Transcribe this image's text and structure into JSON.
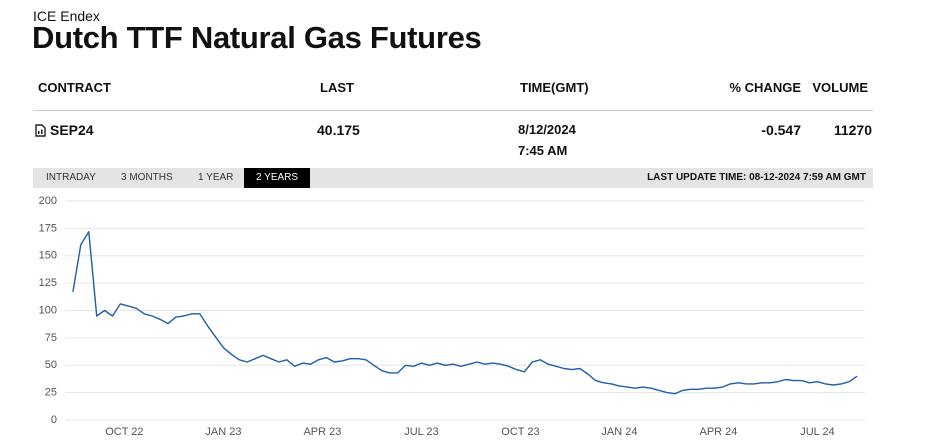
{
  "header": {
    "exchange": "ICE Endex",
    "title": "Dutch TTF Natural Gas Futures"
  },
  "table": {
    "columns": [
      "CONTRACT",
      "LAST",
      "TIME(GMT)",
      "% CHANGE",
      "VOLUME"
    ],
    "row": {
      "contract": "SEP24",
      "last": 40.175,
      "date": "8/12/2024",
      "time": "7:45 AM",
      "change": -0.547,
      "volume": 11270
    }
  },
  "tabs": {
    "items": [
      "INTRADAY",
      "3 MONTHS",
      "1 YEAR",
      "2 YEARS"
    ],
    "active": 3
  },
  "last_update": "LAST UPDATE TIME: 08-12-2024 7:59 AM GMT",
  "chart_data": {
    "type": "line",
    "color": "#1f5fa8",
    "grid": true,
    "x": [
      2022.62,
      2022.64,
      2022.66,
      2022.68,
      2022.7,
      2022.72,
      2022.74,
      2022.76,
      2022.78,
      2022.8,
      2022.82,
      2022.84,
      2022.86,
      2022.88,
      2022.9,
      2022.92,
      2022.94,
      2022.96,
      2022.98,
      2023.0,
      2023.02,
      2023.04,
      2023.06,
      2023.08,
      2023.1,
      2023.12,
      2023.14,
      2023.16,
      2023.18,
      2023.2,
      2023.22,
      2023.24,
      2023.26,
      2023.28,
      2023.3,
      2023.32,
      2023.34,
      2023.36,
      2023.38,
      2023.4,
      2023.42,
      2023.44,
      2023.46,
      2023.48,
      2023.5,
      2023.52,
      2023.54,
      2023.56,
      2023.58,
      2023.6,
      2023.62,
      2023.64,
      2023.66,
      2023.68,
      2023.7,
      2023.72,
      2023.74,
      2023.76,
      2023.78,
      2023.8,
      2023.82,
      2023.84,
      2023.86,
      2023.88,
      2023.9,
      2023.92,
      2023.94,
      2023.96,
      2023.98,
      2024.0,
      2024.02,
      2024.04,
      2024.06,
      2024.08,
      2024.1,
      2024.12,
      2024.14,
      2024.16,
      2024.18,
      2024.2,
      2024.22,
      2024.24,
      2024.26,
      2024.28,
      2024.3,
      2024.32,
      2024.34,
      2024.36,
      2024.38,
      2024.4,
      2024.42,
      2024.44,
      2024.46,
      2024.48,
      2024.5,
      2024.52,
      2024.54,
      2024.56,
      2024.58,
      2024.6
    ],
    "values": [
      117,
      160,
      172,
      95,
      100,
      95,
      106,
      104,
      102,
      97,
      95,
      92,
      88,
      94,
      95,
      97,
      97,
      86,
      76,
      66,
      60,
      55,
      53,
      56,
      59,
      56,
      53,
      55,
      49,
      52,
      51,
      55,
      57,
      53,
      54,
      56,
      56,
      55,
      50,
      45,
      43,
      43,
      50,
      49,
      52,
      50,
      52,
      50,
      51,
      49,
      51,
      53,
      51,
      52,
      51,
      49,
      46,
      44,
      53,
      55,
      51,
      49,
      47,
      46,
      47,
      42,
      36,
      34,
      33,
      31,
      30,
      29,
      30,
      29,
      27,
      25,
      24,
      27,
      28,
      28,
      29,
      29,
      30,
      33,
      34,
      33,
      33,
      34,
      34,
      35,
      37,
      36,
      36,
      34,
      35,
      33,
      32,
      33,
      35,
      40
    ],
    "xlim": [
      2022.6,
      2024.62
    ],
    "ylim": [
      0,
      200
    ],
    "yticks": [
      0,
      25,
      50,
      75,
      100,
      125,
      150,
      175,
      200
    ],
    "xticks": [
      {
        "value": 2022.75,
        "label": "OCT 22"
      },
      {
        "value": 2023.0,
        "label": "JAN 23"
      },
      {
        "value": 2023.25,
        "label": "APR 23"
      },
      {
        "value": 2023.5,
        "label": "JUL 23"
      },
      {
        "value": 2023.75,
        "label": "OCT 23"
      },
      {
        "value": 2024.0,
        "label": "JAN 24"
      },
      {
        "value": 2024.25,
        "label": "APR 24"
      },
      {
        "value": 2024.5,
        "label": "JUL 24"
      }
    ]
  }
}
